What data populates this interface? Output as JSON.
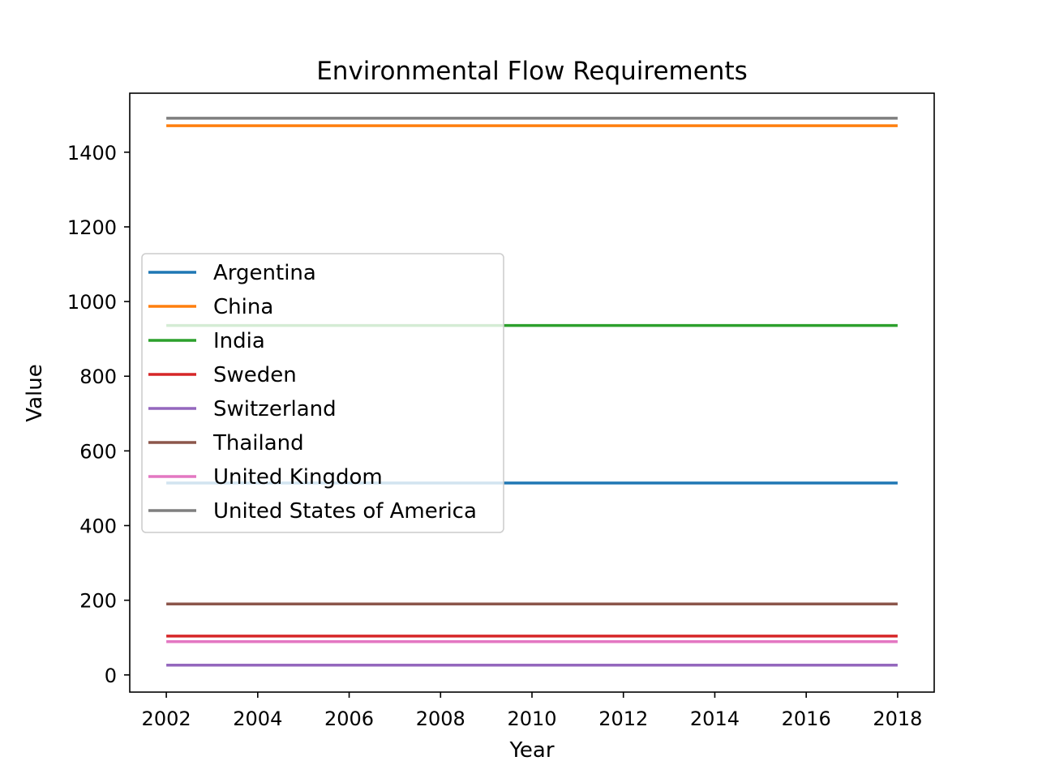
{
  "chart_data": {
    "type": "line",
    "title": "Environmental Flow Requirements",
    "xlabel": "Year",
    "ylabel": "Value",
    "x": [
      2002,
      2003,
      2004,
      2005,
      2006,
      2007,
      2008,
      2009,
      2010,
      2011,
      2012,
      2013,
      2014,
      2015,
      2016,
      2017,
      2018
    ],
    "xlim": [
      2001.2,
      2018.8
    ],
    "ylim": [
      -46,
      1558
    ],
    "xticks": [
      2002,
      2004,
      2006,
      2008,
      2010,
      2012,
      2014,
      2016,
      2018
    ],
    "yticks": [
      0,
      200,
      400,
      600,
      800,
      1000,
      1200,
      1400
    ],
    "grid": false,
    "legend_position": "center-left",
    "series": [
      {
        "name": "Argentina",
        "color": "#1f77b4",
        "values": [
          514,
          514,
          514,
          514,
          514,
          514,
          514,
          514,
          514,
          514,
          514,
          514,
          514,
          514,
          514,
          514,
          514
        ]
      },
      {
        "name": "China",
        "color": "#ff7f0e",
        "values": [
          1471,
          1471,
          1471,
          1471,
          1471,
          1471,
          1471,
          1471,
          1471,
          1471,
          1471,
          1471,
          1471,
          1471,
          1471,
          1471,
          1471
        ]
      },
      {
        "name": "India",
        "color": "#2ca02c",
        "values": [
          936,
          936,
          936,
          936,
          936,
          936,
          936,
          936,
          936,
          936,
          936,
          936,
          936,
          936,
          936,
          936,
          936
        ]
      },
      {
        "name": "Sweden",
        "color": "#d62728",
        "values": [
          104,
          104,
          104,
          104,
          104,
          104,
          104,
          104,
          104,
          104,
          104,
          104,
          104,
          104,
          104,
          104,
          104
        ]
      },
      {
        "name": "Switzerland",
        "color": "#9467bd",
        "values": [
          26,
          26,
          26,
          26,
          26,
          26,
          26,
          26,
          26,
          26,
          26,
          26,
          26,
          26,
          26,
          26,
          26
        ]
      },
      {
        "name": "Thailand",
        "color": "#8c564b",
        "values": [
          190,
          190,
          190,
          190,
          190,
          190,
          190,
          190,
          190,
          190,
          190,
          190,
          190,
          190,
          190,
          190,
          190
        ]
      },
      {
        "name": "United Kingdom",
        "color": "#e377c2",
        "values": [
          89,
          89,
          89,
          89,
          89,
          89,
          89,
          89,
          89,
          89,
          89,
          89,
          89,
          89,
          89,
          89,
          89
        ]
      },
      {
        "name": "United States of America",
        "color": "#7f7f7f",
        "values": [
          1491,
          1491,
          1491,
          1491,
          1491,
          1491,
          1491,
          1491,
          1491,
          1491,
          1491,
          1491,
          1491,
          1491,
          1491,
          1491,
          1491
        ]
      }
    ]
  }
}
